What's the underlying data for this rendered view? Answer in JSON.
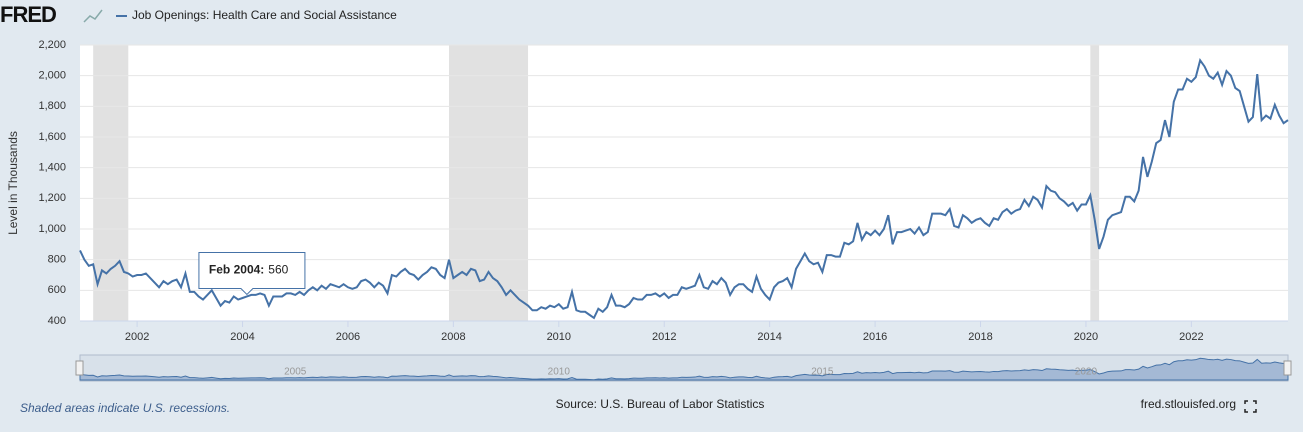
{
  "chart_data": {
    "type": "line",
    "logo": "FRED",
    "title": "Job Openings: Health Care and Social Assistance",
    "y_label": "Level in Thousands",
    "x": [
      "2000-12",
      "2001-01",
      "2001-02",
      "2001-03",
      "2001-04",
      "2001-05",
      "2001-06",
      "2001-07",
      "2001-08",
      "2001-09",
      "2001-10",
      "2001-11",
      "2001-12",
      "2002-01",
      "2002-02",
      "2002-03",
      "2002-04",
      "2002-05",
      "2002-06",
      "2002-07",
      "2002-08",
      "2002-09",
      "2002-10",
      "2002-11",
      "2002-12",
      "2003-01",
      "2003-02",
      "2003-03",
      "2003-04",
      "2003-05",
      "2003-06",
      "2003-07",
      "2003-08",
      "2003-09",
      "2003-10",
      "2003-11",
      "2003-12",
      "2004-01",
      "2004-02",
      "2004-03",
      "2004-04",
      "2004-05",
      "2004-06",
      "2004-07",
      "2004-08",
      "2004-09",
      "2004-10",
      "2004-11",
      "2004-12",
      "2005-01",
      "2005-02",
      "2005-03",
      "2005-04",
      "2005-05",
      "2005-06",
      "2005-07",
      "2005-08",
      "2005-09",
      "2005-10",
      "2005-11",
      "2005-12",
      "2006-01",
      "2006-02",
      "2006-03",
      "2006-04",
      "2006-05",
      "2006-06",
      "2006-07",
      "2006-08",
      "2006-09",
      "2006-10",
      "2006-11",
      "2006-12",
      "2007-01",
      "2007-02",
      "2007-03",
      "2007-04",
      "2007-05",
      "2007-06",
      "2007-07",
      "2007-08",
      "2007-09",
      "2007-10",
      "2007-11",
      "2007-12",
      "2008-01",
      "2008-02",
      "2008-03",
      "2008-04",
      "2008-05",
      "2008-06",
      "2008-07",
      "2008-08",
      "2008-09",
      "2008-10",
      "2008-11",
      "2008-12",
      "2009-01",
      "2009-02",
      "2009-03",
      "2009-04",
      "2009-05",
      "2009-06",
      "2009-07",
      "2009-08",
      "2009-09",
      "2009-10",
      "2009-11",
      "2009-12",
      "2010-01",
      "2010-02",
      "2010-03",
      "2010-04",
      "2010-05",
      "2010-06",
      "2010-07",
      "2010-08",
      "2010-09",
      "2010-10",
      "2010-11",
      "2010-12",
      "2011-01",
      "2011-02",
      "2011-03",
      "2011-04",
      "2011-05",
      "2011-06",
      "2011-07",
      "2011-08",
      "2011-09",
      "2011-10",
      "2011-11",
      "2011-12",
      "2012-01",
      "2012-02",
      "2012-03",
      "2012-04",
      "2012-05",
      "2012-06",
      "2012-07",
      "2012-08",
      "2012-09",
      "2012-10",
      "2012-11",
      "2012-12",
      "2013-01",
      "2013-02",
      "2013-03",
      "2013-04",
      "2013-05",
      "2013-06",
      "2013-07",
      "2013-08",
      "2013-09",
      "2013-10",
      "2013-11",
      "2013-12",
      "2014-01",
      "2014-02",
      "2014-03",
      "2014-04",
      "2014-05",
      "2014-06",
      "2014-07",
      "2014-08",
      "2014-09",
      "2014-10",
      "2014-11",
      "2014-12",
      "2015-01",
      "2015-02",
      "2015-03",
      "2015-04",
      "2015-05",
      "2015-06",
      "2015-07",
      "2015-08",
      "2015-09",
      "2015-10",
      "2015-11",
      "2015-12",
      "2016-01",
      "2016-02",
      "2016-03",
      "2016-04",
      "2016-05",
      "2016-06",
      "2016-07",
      "2016-08",
      "2016-09",
      "2016-10",
      "2016-11",
      "2016-12",
      "2017-01",
      "2017-02",
      "2017-03",
      "2017-04",
      "2017-05",
      "2017-06",
      "2017-07",
      "2017-08",
      "2017-09",
      "2017-10",
      "2017-11",
      "2017-12",
      "2018-01",
      "2018-02",
      "2018-03",
      "2018-04",
      "2018-05",
      "2018-06",
      "2018-07",
      "2018-08",
      "2018-09",
      "2018-10",
      "2018-11",
      "2018-12",
      "2019-01",
      "2019-02",
      "2019-03",
      "2019-04",
      "2019-05",
      "2019-06",
      "2019-07",
      "2019-08",
      "2019-09",
      "2019-10",
      "2019-11",
      "2019-12",
      "2020-01",
      "2020-02",
      "2020-03",
      "2020-04",
      "2020-05",
      "2020-06",
      "2020-07",
      "2020-08",
      "2020-09",
      "2020-10",
      "2020-11",
      "2020-12",
      "2021-01",
      "2021-02",
      "2021-03",
      "2021-04",
      "2021-05",
      "2021-06",
      "2021-07",
      "2021-08",
      "2021-09",
      "2021-10",
      "2021-11",
      "2021-12",
      "2022-01",
      "2022-02",
      "2022-03",
      "2022-04",
      "2022-05",
      "2022-06",
      "2022-07",
      "2022-08",
      "2022-09",
      "2022-10",
      "2022-11",
      "2022-12",
      "2023-01",
      "2023-02",
      "2023-03",
      "2023-04",
      "2023-05",
      "2023-06",
      "2023-07",
      "2023-08",
      "2023-09",
      "2023-10",
      "2023-11"
    ],
    "series": [
      {
        "name": "Job Openings: Health Care and Social Assistance",
        "color": "#4572a7",
        "values": [
          860,
          800,
          760,
          770,
          640,
          730,
          710,
          740,
          760,
          790,
          720,
          710,
          690,
          700,
          700,
          710,
          680,
          650,
          620,
          660,
          640,
          660,
          670,
          620,
          710,
          590,
          590,
          560,
          540,
          570,
          600,
          550,
          500,
          530,
          520,
          560,
          540,
          550,
          560,
          570,
          570,
          580,
          570,
          500,
          560,
          560,
          560,
          580,
          580,
          570,
          590,
          570,
          600,
          620,
          600,
          630,
          610,
          640,
          630,
          620,
          640,
          620,
          610,
          620,
          660,
          670,
          650,
          620,
          650,
          630,
          580,
          700,
          690,
          720,
          740,
          710,
          700,
          670,
          700,
          720,
          750,
          740,
          700,
          680,
          800,
          680,
          700,
          720,
          700,
          740,
          730,
          660,
          670,
          720,
          680,
          660,
          620,
          570,
          600,
          570,
          540,
          520,
          500,
          470,
          470,
          490,
          480,
          500,
          490,
          510,
          480,
          490,
          590,
          470,
          460,
          460,
          440,
          420,
          480,
          460,
          490,
          570,
          500,
          500,
          490,
          510,
          550,
          540,
          540,
          570,
          570,
          580,
          560,
          580,
          550,
          570,
          570,
          620,
          610,
          620,
          630,
          700,
          620,
          610,
          660,
          640,
          680,
          650,
          570,
          620,
          640,
          640,
          610,
          590,
          690,
          610,
          570,
          540,
          620,
          650,
          660,
          680,
          620,
          740,
          790,
          840,
          790,
          770,
          780,
          720,
          830,
          830,
          820,
          820,
          910,
          900,
          920,
          1040,
          930,
          980,
          960,
          990,
          960,
          1000,
          1090,
          900,
          980,
          980,
          990,
          1000,
          970,
          1010,
          960,
          980,
          1100,
          1100,
          1100,
          1090,
          1130,
          1020,
          1010,
          1090,
          1070,
          1040,
          1060,
          1070,
          1040,
          1020,
          1070,
          1060,
          1110,
          1130,
          1100,
          1120,
          1130,
          1190,
          1150,
          1210,
          1190,
          1140,
          1280,
          1250,
          1240,
          1200,
          1180,
          1150,
          1170,
          1120,
          1160,
          1160,
          1220,
          1060,
          870,
          950,
          1060,
          1090,
          1100,
          1110,
          1210,
          1210,
          1180,
          1250,
          1470,
          1340,
          1440,
          1560,
          1580,
          1710,
          1600,
          1830,
          1910,
          1910,
          1980,
          1960,
          1990,
          2100,
          2060,
          2000,
          1980,
          2020,
          1940,
          2030,
          2000,
          1920,
          1900,
          1800,
          1700,
          1730,
          2010,
          1710,
          1740,
          1720,
          1810,
          1740,
          1690,
          1710
        ]
      }
    ],
    "ylim": [
      400,
      2200
    ],
    "yticks": [
      400,
      600,
      800,
      {
        "value": 1000,
        "label": "1,000"
      },
      {
        "value": 1200,
        "label": "1,200"
      },
      {
        "value": 1400,
        "label": "1,400"
      },
      {
        "value": 1600,
        "label": "1,600"
      },
      {
        "value": 1800,
        "label": "1,800"
      },
      {
        "value": 2000,
        "label": "2,000"
      },
      {
        "value": 2200,
        "label": "2,200"
      }
    ],
    "xticks": [
      {
        "value": "2002-01",
        "label": "2002"
      },
      {
        "value": "2004-01",
        "label": "2004"
      },
      {
        "value": "2006-01",
        "label": "2006"
      },
      {
        "value": "2008-01",
        "label": "2008"
      },
      {
        "value": "2010-01",
        "label": "2010"
      },
      {
        "value": "2012-01",
        "label": "2012"
      },
      {
        "value": "2014-01",
        "label": "2014"
      },
      {
        "value": "2016-01",
        "label": "2016"
      },
      {
        "value": "2018-01",
        "label": "2018"
      },
      {
        "value": "2020-01",
        "label": "2020"
      },
      {
        "value": "2022-01",
        "label": "2022"
      }
    ],
    "navigator_ticks": [
      {
        "value": "2005-01",
        "label": "2005"
      },
      {
        "value": "2010-01",
        "label": "2010"
      },
      {
        "value": "2015-01",
        "label": "2015"
      },
      {
        "value": "2020-01",
        "label": "2020"
      }
    ],
    "recessions": [
      [
        "2001-03",
        "2001-11"
      ],
      [
        "2007-12",
        "2009-06"
      ],
      [
        "2020-02",
        "2020-04"
      ]
    ],
    "grid": true,
    "tooltip": {
      "label": "Feb 2004:",
      "x": "2004-02",
      "value": 560
    },
    "footnote": "Shaded areas indicate U.S. recessions.",
    "source": "Source: U.S. Bureau of Labor Statistics",
    "site": "fred.stlouisfed.org"
  }
}
